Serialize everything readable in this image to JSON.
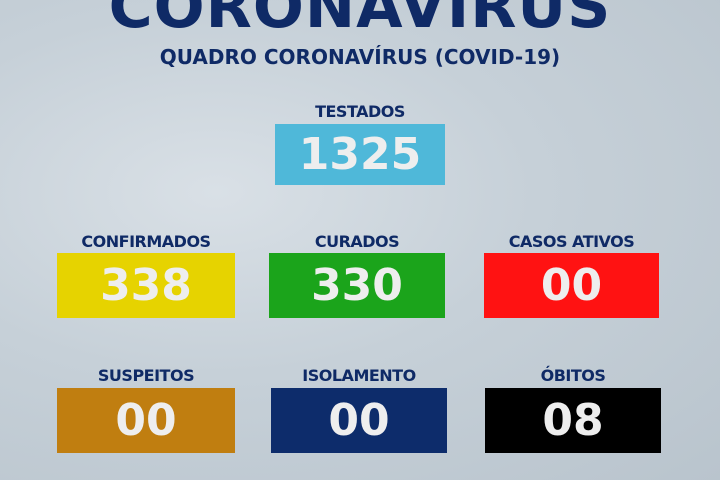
{
  "header": {
    "title": "CORONAVÍRUS",
    "subtitle": "QUADRO CORONAVÍRUS (COVID-19)"
  },
  "stats": [
    {
      "label": "TESTADOS",
      "value": "1325",
      "color": "#4fb8d9"
    },
    {
      "label": "CONFIRMADOS",
      "value": "338",
      "color": "#e6d300"
    },
    {
      "label": "CURADOS",
      "value": "330",
      "color": "#1ba41b"
    },
    {
      "label": "CASOS ATIVOS",
      "value": "00",
      "color": "#ff1212"
    },
    {
      "label": "SUSPEITOS",
      "value": "00",
      "color": "#c07e10"
    },
    {
      "label": "ISOLAMENTO",
      "value": "00",
      "color": "#0d2c6b"
    },
    {
      "label": "ÓBITOS",
      "value": "08",
      "color": "#000000"
    }
  ]
}
